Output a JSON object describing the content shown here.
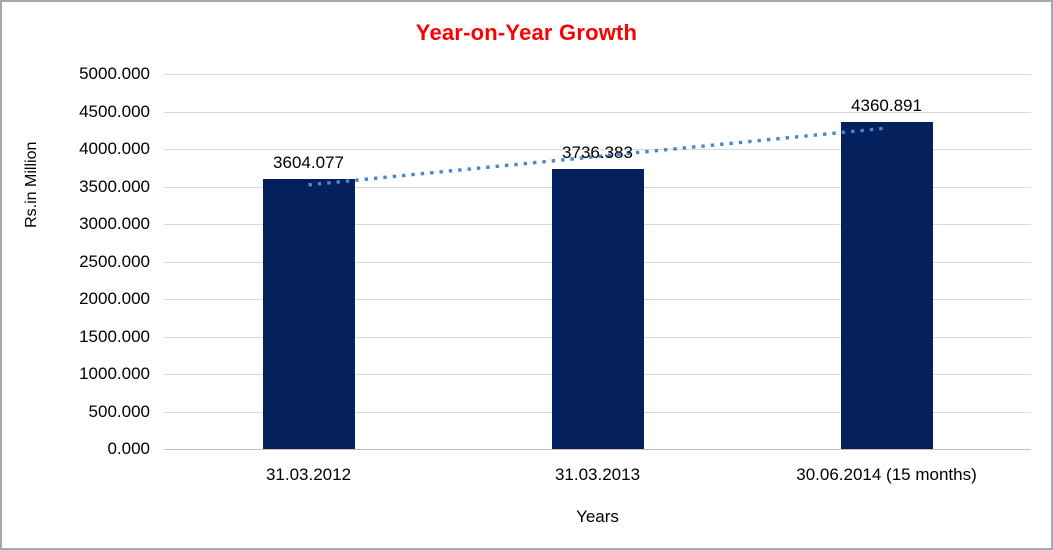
{
  "chart_data": {
    "type": "bar",
    "title": "Year-on-Year Growth",
    "xlabel": "Years",
    "ylabel": "Rs.in Million",
    "categories": [
      "31.03.2012",
      "31.03.2013",
      "30.06.2014 (15 months)"
    ],
    "values": [
      3604.077,
      3736.383,
      4360.891
    ],
    "data_labels": [
      "3604.077",
      "3736.383",
      "4360.891"
    ],
    "ylim": [
      0,
      5000
    ],
    "ytick_step": 500,
    "ytick_labels": [
      "0.000",
      "500.000",
      "1000.000",
      "1500.000",
      "2000.000",
      "2500.000",
      "3000.000",
      "3500.000",
      "4000.000",
      "4500.000",
      "5000.000"
    ],
    "grid": true,
    "legend": "none",
    "trendline": {
      "type": "linear",
      "style": "dotted",
      "color": "#4a86c8"
    },
    "colors": {
      "bar": "#04215e",
      "title": "#ff0000",
      "gridline": "#d9d9d9",
      "axis_line": "#bfbfbf",
      "text": "#000000"
    }
  }
}
